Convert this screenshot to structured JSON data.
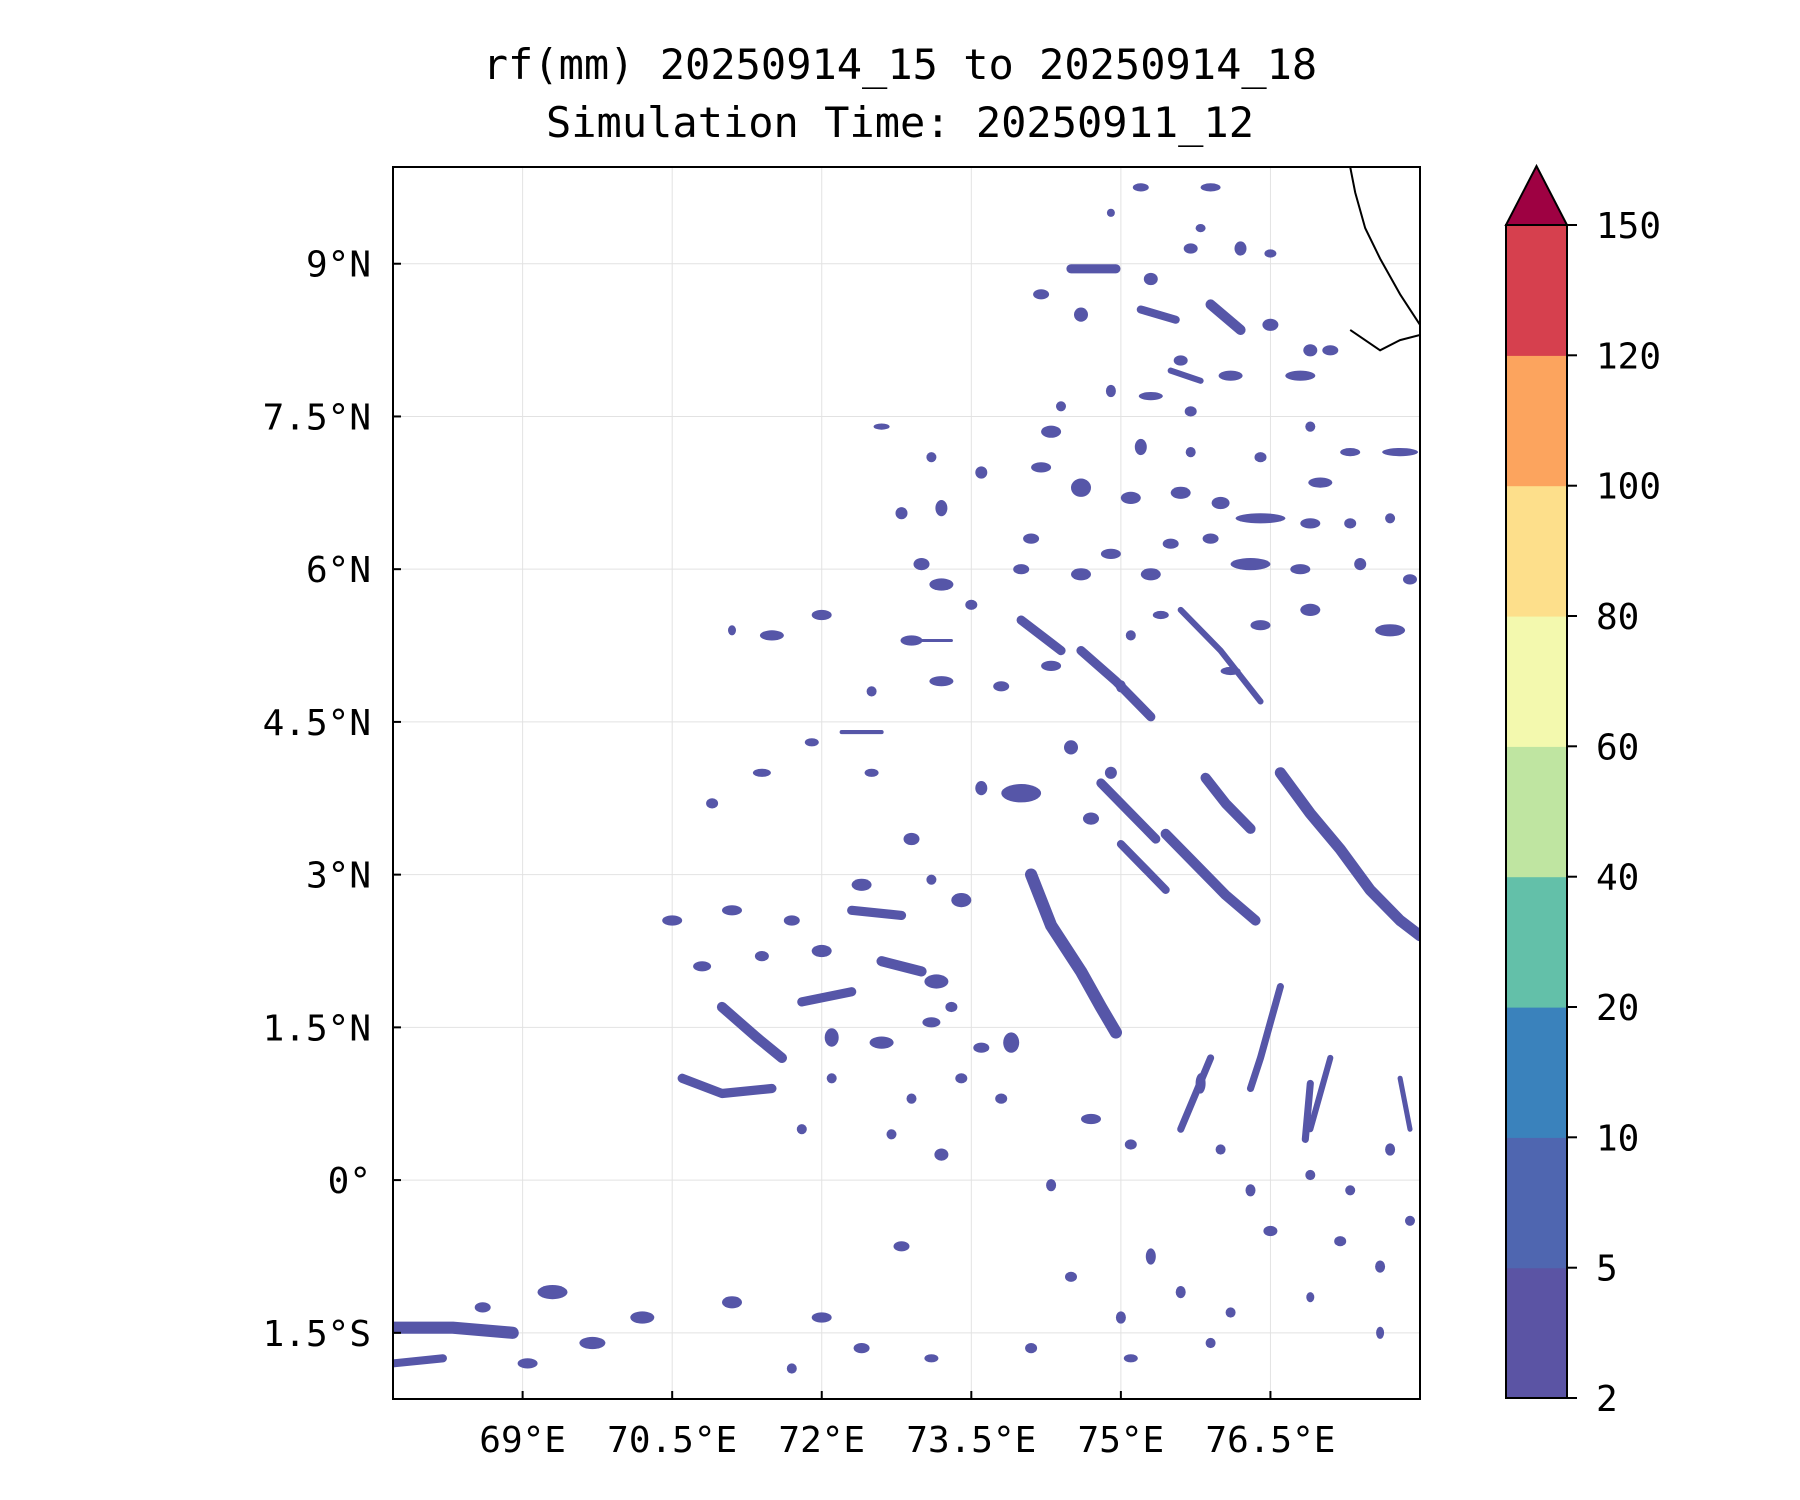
{
  "title": {
    "line1": "rf(mm) 20250914_15 to 20250914_18",
    "line2": "Simulation Time: 20250911_12"
  },
  "map": {
    "lon_range": [
      67.7,
      78.0
    ],
    "lat_range": [
      -2.15,
      9.95
    ],
    "lon_ticks": [
      {
        "value": 69.0,
        "label": "69°E"
      },
      {
        "value": 70.5,
        "label": "70.5°E"
      },
      {
        "value": 72.0,
        "label": "72°E"
      },
      {
        "value": 73.5,
        "label": "73.5°E"
      },
      {
        "value": 75.0,
        "label": "75°E"
      },
      {
        "value": 76.5,
        "label": "76.5°E"
      }
    ],
    "lat_ticks": [
      {
        "value": 9.0,
        "label": "9°N"
      },
      {
        "value": 7.5,
        "label": "7.5°N"
      },
      {
        "value": 6.0,
        "label": "6°N"
      },
      {
        "value": 4.5,
        "label": "4.5°N"
      },
      {
        "value": 3.0,
        "label": "3°N"
      },
      {
        "value": 1.5,
        "label": "1.5°N"
      },
      {
        "value": 0.0,
        "label": "0°"
      },
      {
        "value": -1.5,
        "label": "1.5°S"
      }
    ],
    "gridlines": true,
    "rain_color": "#5656a8",
    "coastline": [
      [
        77.3,
        9.95
      ],
      [
        77.35,
        9.7
      ],
      [
        77.45,
        9.35
      ],
      [
        77.6,
        9.05
      ],
      [
        77.8,
        8.7
      ],
      [
        78.0,
        8.4
      ],
      [
        78.0,
        8.3
      ],
      [
        77.8,
        8.25
      ],
      [
        77.6,
        8.15
      ],
      [
        77.3,
        8.35
      ]
    ],
    "rain_bands": [
      {
        "points": [
          [
            76.6,
            4.0
          ],
          [
            76.9,
            3.6
          ],
          [
            77.2,
            3.25
          ],
          [
            77.5,
            2.85
          ],
          [
            77.8,
            2.55
          ],
          [
            78.0,
            2.4
          ]
        ],
        "width": 0.11
      },
      {
        "points": [
          [
            75.85,
            3.95
          ],
          [
            76.05,
            3.7
          ],
          [
            76.3,
            3.45
          ]
        ],
        "width": 0.1
      },
      {
        "points": [
          [
            75.45,
            3.4
          ],
          [
            75.75,
            3.1
          ],
          [
            76.05,
            2.8
          ],
          [
            76.35,
            2.55
          ]
        ],
        "width": 0.1
      },
      {
        "points": [
          [
            74.1,
            3.0
          ],
          [
            74.3,
            2.5
          ],
          [
            74.6,
            2.05
          ],
          [
            74.8,
            1.7
          ],
          [
            74.95,
            1.45
          ]
        ],
        "width": 0.12
      },
      {
        "points": [
          [
            74.8,
            3.9
          ],
          [
            75.1,
            3.6
          ],
          [
            75.35,
            3.35
          ]
        ],
        "width": 0.09
      },
      {
        "points": [
          [
            75.0,
            3.3
          ],
          [
            75.25,
            3.05
          ],
          [
            75.45,
            2.85
          ]
        ],
        "width": 0.08
      },
      {
        "points": [
          [
            74.6,
            5.2
          ],
          [
            74.95,
            4.9
          ],
          [
            75.3,
            4.55
          ]
        ],
        "width": 0.09
      },
      {
        "points": [
          [
            75.6,
            5.6
          ],
          [
            76.0,
            5.2
          ],
          [
            76.4,
            4.7
          ]
        ],
        "width": 0.06
      },
      {
        "points": [
          [
            74.0,
            5.5
          ],
          [
            74.4,
            5.2
          ]
        ],
        "width": 0.09
      },
      {
        "points": [
          [
            75.9,
            8.6
          ],
          [
            76.2,
            8.35
          ]
        ],
        "width": 0.1
      },
      {
        "points": [
          [
            75.2,
            8.55
          ],
          [
            75.55,
            8.45
          ]
        ],
        "width": 0.08
      },
      {
        "points": [
          [
            74.5,
            8.95
          ],
          [
            74.95,
            8.95
          ]
        ],
        "width": 0.09
      },
      {
        "points": [
          [
            75.5,
            7.95
          ],
          [
            75.8,
            7.85
          ]
        ],
        "width": 0.06
      },
      {
        "points": [
          [
            76.6,
            1.9
          ],
          [
            76.5,
            1.55
          ],
          [
            76.4,
            1.2
          ],
          [
            76.3,
            0.9
          ]
        ],
        "width": 0.07
      },
      {
        "points": [
          [
            75.9,
            1.2
          ],
          [
            75.75,
            0.85
          ],
          [
            75.6,
            0.5
          ]
        ],
        "width": 0.07
      },
      {
        "points": [
          [
            77.1,
            1.2
          ],
          [
            77.0,
            0.85
          ],
          [
            76.9,
            0.5
          ]
        ],
        "width": 0.06
      },
      {
        "points": [
          [
            76.9,
            0.95
          ],
          [
            76.85,
            0.4
          ]
        ],
        "width": 0.07
      },
      {
        "points": [
          [
            77.8,
            1.0
          ],
          [
            77.9,
            0.5
          ]
        ],
        "width": 0.05
      },
      {
        "points": [
          [
            70.6,
            1.0
          ],
          [
            71.0,
            0.85
          ],
          [
            71.5,
            0.9
          ]
        ],
        "width": 0.09
      },
      {
        "points": [
          [
            71.0,
            1.7
          ],
          [
            71.35,
            1.4
          ],
          [
            71.6,
            1.2
          ]
        ],
        "width": 0.1
      },
      {
        "points": [
          [
            71.8,
            1.75
          ],
          [
            72.3,
            1.85
          ]
        ],
        "width": 0.09
      },
      {
        "points": [
          [
            72.6,
            2.15
          ],
          [
            73.0,
            2.05
          ]
        ],
        "width": 0.1
      },
      {
        "points": [
          [
            72.3,
            2.65
          ],
          [
            72.8,
            2.6
          ]
        ],
        "width": 0.09
      },
      {
        "points": [
          [
            67.7,
            -1.45
          ],
          [
            68.3,
            -1.45
          ],
          [
            68.9,
            -1.5
          ]
        ],
        "width": 0.12
      },
      {
        "points": [
          [
            67.7,
            -1.8
          ],
          [
            68.2,
            -1.75
          ]
        ],
        "width": 0.08
      },
      {
        "points": [
          [
            72.2,
            4.4
          ],
          [
            72.6,
            4.4
          ]
        ],
        "width": 0.04
      },
      {
        "points": [
          [
            72.9,
            5.3
          ],
          [
            73.3,
            5.3
          ]
        ],
        "width": 0.03
      }
    ],
    "rain_blobs": [
      [
        69.3,
        -1.1,
        0.15,
        0.07
      ],
      [
        70.2,
        -1.35,
        0.12,
        0.06
      ],
      [
        69.7,
        -1.6,
        0.13,
        0.06
      ],
      [
        69.05,
        -1.8,
        0.1,
        0.05
      ],
      [
        68.6,
        -1.25,
        0.08,
        0.05
      ],
      [
        71.1,
        -1.2,
        0.1,
        0.06
      ],
      [
        72.0,
        -1.35,
        0.1,
        0.05
      ],
      [
        72.4,
        -1.65,
        0.08,
        0.05
      ],
      [
        73.1,
        -1.75,
        0.07,
        0.04
      ],
      [
        74.1,
        -1.65,
        0.06,
        0.05
      ],
      [
        75.1,
        -1.75,
        0.07,
        0.04
      ],
      [
        71.7,
        -1.85,
        0.05,
        0.05
      ],
      [
        72.8,
        -0.65,
        0.08,
        0.05
      ],
      [
        74.5,
        -0.95,
        0.06,
        0.05
      ],
      [
        75.3,
        -0.75,
        0.05,
        0.08
      ],
      [
        75.6,
        -1.1,
        0.05,
        0.06
      ],
      [
        76.1,
        -1.3,
        0.05,
        0.05
      ],
      [
        76.5,
        -0.5,
        0.07,
        0.05
      ],
      [
        77.2,
        -0.6,
        0.06,
        0.05
      ],
      [
        77.6,
        -0.85,
        0.05,
        0.06
      ],
      [
        77.9,
        -0.4,
        0.05,
        0.05
      ],
      [
        75.0,
        -1.35,
        0.05,
        0.06
      ],
      [
        76.9,
        -1.15,
        0.04,
        0.05
      ],
      [
        77.6,
        -1.5,
        0.04,
        0.06
      ],
      [
        75.9,
        -1.6,
        0.05,
        0.05
      ],
      [
        74.7,
        0.6,
        0.1,
        0.05
      ],
      [
        75.8,
        0.95,
        0.05,
        0.1
      ],
      [
        75.1,
        0.35,
        0.06,
        0.05
      ],
      [
        76.0,
        0.3,
        0.05,
        0.05
      ],
      [
        76.9,
        0.05,
        0.05,
        0.05
      ],
      [
        77.3,
        -0.1,
        0.05,
        0.05
      ],
      [
        77.7,
        0.3,
        0.05,
        0.06
      ],
      [
        73.8,
        0.8,
        0.06,
        0.05
      ],
      [
        73.2,
        0.25,
        0.07,
        0.06
      ],
      [
        74.3,
        -0.05,
        0.05,
        0.06
      ],
      [
        76.3,
        -0.1,
        0.05,
        0.06
      ],
      [
        72.4,
        2.9,
        0.1,
        0.06
      ],
      [
        72.9,
        3.35,
        0.08,
        0.06
      ],
      [
        73.4,
        2.75,
        0.1,
        0.07
      ],
      [
        73.15,
        1.95,
        0.12,
        0.07
      ],
      [
        72.0,
        2.25,
        0.1,
        0.06
      ],
      [
        71.7,
        2.55,
        0.08,
        0.05
      ],
      [
        71.1,
        2.65,
        0.1,
        0.05
      ],
      [
        70.5,
        2.55,
        0.1,
        0.05
      ],
      [
        70.8,
        2.1,
        0.09,
        0.05
      ],
      [
        71.4,
        2.2,
        0.07,
        0.05
      ],
      [
        72.1,
        1.4,
        0.07,
        0.09
      ],
      [
        72.6,
        1.35,
        0.12,
        0.06
      ],
      [
        73.4,
        1.0,
        0.06,
        0.05
      ],
      [
        73.6,
        1.3,
        0.08,
        0.05
      ],
      [
        73.1,
        1.55,
        0.09,
        0.05
      ],
      [
        73.3,
        1.7,
        0.06,
        0.05
      ],
      [
        73.9,
        1.35,
        0.08,
        0.1
      ],
      [
        72.9,
        0.8,
        0.05,
        0.05
      ],
      [
        72.1,
        1.0,
        0.05,
        0.05
      ],
      [
        71.8,
        0.5,
        0.05,
        0.05
      ],
      [
        72.7,
        0.45,
        0.05,
        0.05
      ],
      [
        74.0,
        3.8,
        0.2,
        0.09
      ],
      [
        74.5,
        4.25,
        0.07,
        0.07
      ],
      [
        73.6,
        3.85,
        0.06,
        0.07
      ],
      [
        74.7,
        3.55,
        0.08,
        0.06
      ],
      [
        73.1,
        2.95,
        0.05,
        0.05
      ],
      [
        74.9,
        4.0,
        0.06,
        0.06
      ],
      [
        72.0,
        5.55,
        0.1,
        0.05
      ],
      [
        72.9,
        5.3,
        0.11,
        0.05
      ],
      [
        71.5,
        5.35,
        0.12,
        0.05
      ],
      [
        71.1,
        5.4,
        0.04,
        0.05
      ],
      [
        73.2,
        4.9,
        0.12,
        0.05
      ],
      [
        73.8,
        4.85,
        0.08,
        0.05
      ],
      [
        74.3,
        5.05,
        0.1,
        0.05
      ],
      [
        72.5,
        4.8,
        0.05,
        0.05
      ],
      [
        71.9,
        4.3,
        0.07,
        0.04
      ],
      [
        71.4,
        4.0,
        0.09,
        0.04
      ],
      [
        72.5,
        4.0,
        0.07,
        0.04
      ],
      [
        70.9,
        3.7,
        0.06,
        0.05
      ],
      [
        73.5,
        5.65,
        0.06,
        0.05
      ],
      [
        74.0,
        6.0,
        0.08,
        0.05
      ],
      [
        73.2,
        6.6,
        0.06,
        0.08
      ],
      [
        73.2,
        5.85,
        0.12,
        0.06
      ],
      [
        73.0,
        6.05,
        0.08,
        0.06
      ],
      [
        72.8,
        6.55,
        0.06,
        0.06
      ],
      [
        73.6,
        6.95,
        0.06,
        0.06
      ],
      [
        73.1,
        7.1,
        0.05,
        0.05
      ],
      [
        72.6,
        7.4,
        0.08,
        0.03
      ],
      [
        74.3,
        7.35,
        0.1,
        0.06
      ],
      [
        74.2,
        7.0,
        0.1,
        0.05
      ],
      [
        74.6,
        6.8,
        0.1,
        0.09
      ],
      [
        75.1,
        6.7,
        0.1,
        0.06
      ],
      [
        75.6,
        6.75,
        0.1,
        0.06
      ],
      [
        76.0,
        6.65,
        0.09,
        0.06
      ],
      [
        76.4,
        6.5,
        0.25,
        0.05
      ],
      [
        76.9,
        6.45,
        0.1,
        0.05
      ],
      [
        77.0,
        6.85,
        0.12,
        0.05
      ],
      [
        77.8,
        7.15,
        0.18,
        0.04
      ],
      [
        77.3,
        7.15,
        0.1,
        0.04
      ],
      [
        77.3,
        6.45,
        0.06,
        0.05
      ],
      [
        77.7,
        6.5,
        0.05,
        0.05
      ],
      [
        77.4,
        6.05,
        0.06,
        0.06
      ],
      [
        76.3,
        6.05,
        0.2,
        0.06
      ],
      [
        75.5,
        6.25,
        0.08,
        0.05
      ],
      [
        75.9,
        6.3,
        0.08,
        0.05
      ],
      [
        74.9,
        6.15,
        0.1,
        0.05
      ],
      [
        74.6,
        5.95,
        0.1,
        0.06
      ],
      [
        75.3,
        5.95,
        0.1,
        0.06
      ],
      [
        76.8,
        6.0,
        0.1,
        0.05
      ],
      [
        76.9,
        5.6,
        0.1,
        0.06
      ],
      [
        76.4,
        5.45,
        0.1,
        0.05
      ],
      [
        75.4,
        5.55,
        0.08,
        0.04
      ],
      [
        75.1,
        5.35,
        0.05,
        0.05
      ],
      [
        75.0,
        4.85,
        0.05,
        0.06
      ],
      [
        77.7,
        5.4,
        0.15,
        0.06
      ],
      [
        77.9,
        5.9,
        0.07,
        0.05
      ],
      [
        76.1,
        5.0,
        0.1,
        0.04
      ],
      [
        74.1,
        6.3,
        0.08,
        0.05
      ],
      [
        74.6,
        8.5,
        0.07,
        0.07
      ],
      [
        75.3,
        8.85,
        0.07,
        0.06
      ],
      [
        75.7,
        9.15,
        0.07,
        0.05
      ],
      [
        76.2,
        9.15,
        0.06,
        0.07
      ],
      [
        76.5,
        9.1,
        0.06,
        0.04
      ],
      [
        76.5,
        8.4,
        0.08,
        0.06
      ],
      [
        76.9,
        8.15,
        0.07,
        0.06
      ],
      [
        76.1,
        7.9,
        0.12,
        0.05
      ],
      [
        76.8,
        7.9,
        0.15,
        0.05
      ],
      [
        75.7,
        7.55,
        0.06,
        0.05
      ],
      [
        75.3,
        7.7,
        0.12,
        0.04
      ],
      [
        75.6,
        8.05,
        0.07,
        0.05
      ],
      [
        74.9,
        7.75,
        0.05,
        0.06
      ],
      [
        75.2,
        7.2,
        0.06,
        0.08
      ],
      [
        75.7,
        7.15,
        0.05,
        0.05
      ],
      [
        76.4,
        7.1,
        0.06,
        0.05
      ],
      [
        76.9,
        7.4,
        0.05,
        0.05
      ],
      [
        77.1,
        8.15,
        0.08,
        0.05
      ],
      [
        75.9,
        9.75,
        0.1,
        0.04
      ],
      [
        75.2,
        9.75,
        0.08,
        0.04
      ],
      [
        75.8,
        9.35,
        0.05,
        0.04
      ],
      [
        74.9,
        9.5,
        0.04,
        0.04
      ],
      [
        74.2,
        8.7,
        0.08,
        0.05
      ],
      [
        74.4,
        7.6,
        0.05,
        0.05
      ]
    ]
  },
  "colorbar": {
    "levels": [
      2,
      5,
      10,
      20,
      40,
      60,
      80,
      100,
      120,
      150
    ],
    "colors": [
      "#5b54a4",
      "#4f66b0",
      "#3a82bc",
      "#63c0a9",
      "#bfe5a1",
      "#f3f9ae",
      "#fddf8b",
      "#fca45e",
      "#d6404e"
    ],
    "extend_color": "#9e0142",
    "labels": [
      "2",
      "5",
      "10",
      "20",
      "40",
      "60",
      "80",
      "100",
      "120",
      "150"
    ]
  }
}
